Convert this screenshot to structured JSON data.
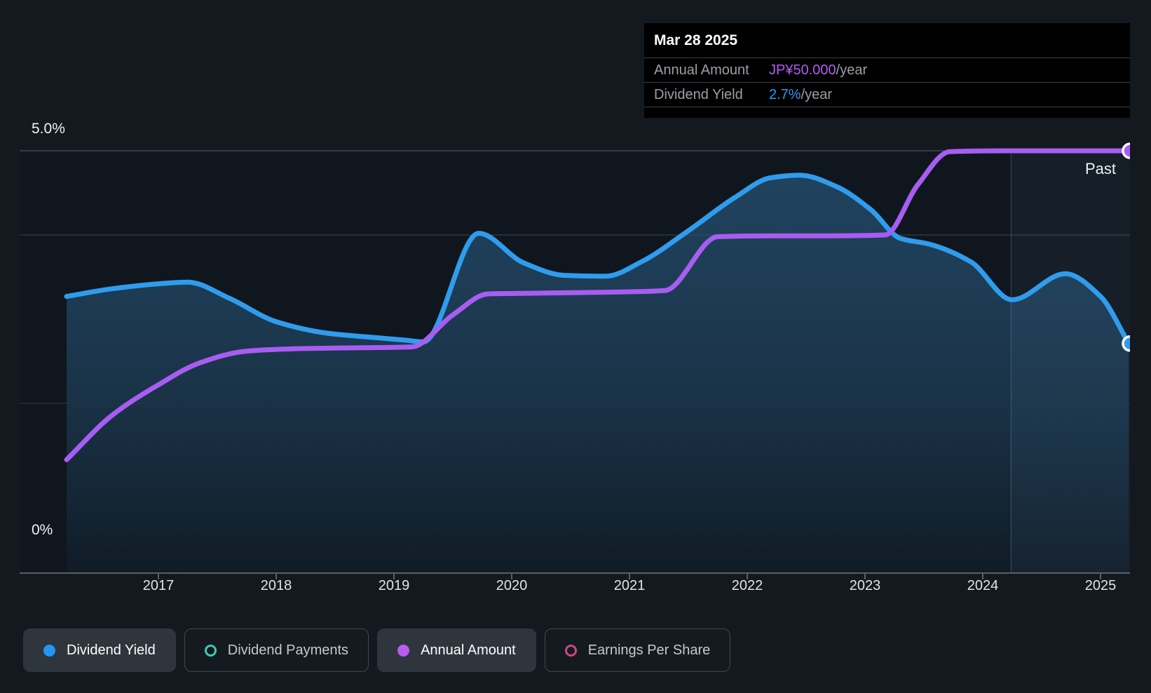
{
  "tooltip": {
    "date": "Mar 28 2025",
    "rows": [
      {
        "label": "Annual Amount",
        "value": "JP¥50.000",
        "suffix": "/year",
        "value_color": "#b45cf2"
      },
      {
        "label": "Dividend Yield",
        "value": "2.7%",
        "suffix": "/year",
        "value_color": "#2d9bf0"
      }
    ]
  },
  "chart_data": {
    "type": "area",
    "title": "Dividend history (dividend yield % and annual dividend amount)",
    "past_label": "Past",
    "x_axis": {
      "ticks": [
        "2017",
        "2018",
        "2019",
        "2020",
        "2021",
        "2022",
        "2023",
        "2024",
        "2025"
      ],
      "range": [
        2016.22,
        2025.24
      ],
      "past_band_start": 2024.24
    },
    "y_axis": {
      "label_top": "5.0%",
      "label_bottom": "0%",
      "range_pct": [
        0,
        5
      ],
      "gridlines_pct": [
        5,
        4,
        2,
        0
      ]
    },
    "series": [
      {
        "name": "Dividend Yield",
        "unit": "%",
        "color": "#2f9ced",
        "end_value": "2.7%/year",
        "points": [
          [
            2016.22,
            3.27
          ],
          [
            2016.6,
            3.36
          ],
          [
            2017.0,
            3.42
          ],
          [
            2017.25,
            3.44
          ],
          [
            2017.6,
            3.25
          ],
          [
            2018.0,
            2.97
          ],
          [
            2018.45,
            2.83
          ],
          [
            2018.85,
            2.78
          ],
          [
            2019.1,
            2.75
          ],
          [
            2019.25,
            2.73
          ],
          [
            2019.72,
            4.02
          ],
          [
            2020.1,
            3.67
          ],
          [
            2020.45,
            3.52
          ],
          [
            2020.8,
            3.51
          ],
          [
            2021.1,
            3.68
          ],
          [
            2021.5,
            4.05
          ],
          [
            2021.9,
            4.45
          ],
          [
            2022.2,
            4.68
          ],
          [
            2022.45,
            4.71
          ],
          [
            2022.75,
            4.58
          ],
          [
            2023.05,
            4.3
          ],
          [
            2023.3,
            3.96
          ],
          [
            2023.55,
            3.89
          ],
          [
            2023.9,
            3.68
          ],
          [
            2024.25,
            3.23
          ],
          [
            2024.7,
            3.54
          ],
          [
            2025.0,
            3.27
          ],
          [
            2025.24,
            2.71
          ]
        ]
      },
      {
        "name": "Annual Amount",
        "unit": "JP¥/year",
        "color": "#a75df2",
        "end_value": "JP¥50.000/year",
        "points_jpy": [
          [
            2016.22,
            13.3
          ],
          [
            2016.6,
            18.5
          ],
          [
            2017.0,
            22.2
          ],
          [
            2017.35,
            24.8
          ],
          [
            2017.75,
            26.2
          ],
          [
            2018.2,
            26.5
          ],
          [
            2018.7,
            26.6
          ],
          [
            2019.15,
            26.7
          ],
          [
            2019.5,
            30.5
          ],
          [
            2019.8,
            33.0
          ],
          [
            2020.3,
            33.1
          ],
          [
            2020.8,
            33.2
          ],
          [
            2021.3,
            33.4
          ],
          [
            2021.75,
            39.8
          ],
          [
            2022.2,
            39.9
          ],
          [
            2022.7,
            39.9
          ],
          [
            2023.17,
            40.0
          ],
          [
            2023.45,
            46.0
          ],
          [
            2023.72,
            49.9
          ],
          [
            2024.2,
            50.0
          ],
          [
            2024.7,
            50.0
          ],
          [
            2025.24,
            50.0
          ]
        ],
        "jpy_per_pct": 10
      }
    ]
  },
  "legend": [
    {
      "label": "Dividend Yield",
      "marker": "dot",
      "color": "#2196f3",
      "active": true
    },
    {
      "label": "Dividend Payments",
      "marker": "ring",
      "color": "#3ec9b4",
      "active": false
    },
    {
      "label": "Annual Amount",
      "marker": "dot",
      "color": "#b85cf2",
      "active": true
    },
    {
      "label": "Earnings Per Share",
      "marker": "ring",
      "color": "#c9497f",
      "active": false
    }
  ],
  "colors": {
    "page_bg": "#141920",
    "plot_bg": "#10161d",
    "grid_strong": "#40474e",
    "grid_mid": "#30373f",
    "grid_faint": "#272e36",
    "axis_line": "#5a6066",
    "past_band": "rgba(125,170,215,0.06)",
    "past_line": "rgba(190,210,230,0.25)",
    "area_top": "rgba(42,93,132,0.62)",
    "area_bottom": "rgba(16,27,38,0.97)"
  }
}
